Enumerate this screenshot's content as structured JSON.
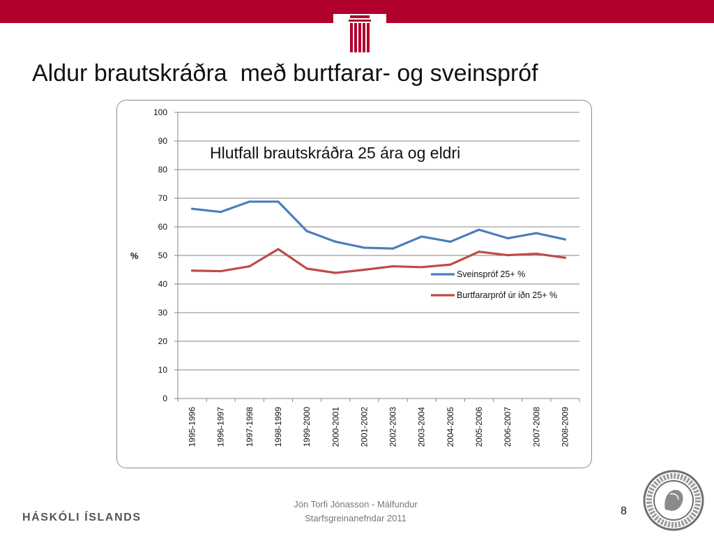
{
  "slide": {
    "title": "Aldur brautskráðra  með burtfarar- og sveinspróf"
  },
  "footer": {
    "brand": "HÁSKÓLI ÍSLANDS",
    "note_line1": "Jón Torfi Jónasson - Málfundur",
    "note_line2": "Starfsgreinanefndar 2011",
    "page_number": "8",
    "seal_icon": "university-seal-icon",
    "logo_icon": "pillar-logo-icon"
  },
  "colors": {
    "brand_red": "#b1002b"
  },
  "chart_data": {
    "type": "line",
    "title": "Hlutfall brautskráðra 25 ára og eldri",
    "ylabel": "%",
    "xlabel": "",
    "ylim": [
      0,
      100
    ],
    "yticks": [
      0,
      10,
      20,
      30,
      40,
      50,
      60,
      70,
      80,
      90,
      100
    ],
    "grid": true,
    "legend_position": "right",
    "categories": [
      "1995-1996",
      "1996-1997",
      "1997-1998",
      "1998-1999",
      "1999-2000",
      "2000-2001",
      "2001-2002",
      "2002-2003",
      "2003-2004",
      "2004-2005",
      "2005-2006",
      "2006-2007",
      "2007-2008",
      "2008-2009"
    ],
    "series": [
      {
        "name": "Sveinspróf 25+   %",
        "color": "#4a7ebb",
        "values": [
          66.3,
          65.2,
          68.8,
          68.8,
          58.5,
          54.8,
          52.7,
          52.4,
          56.6,
          54.8,
          59.0,
          56.0,
          57.8,
          55.6
        ]
      },
      {
        "name": "Burtfararpróf úr iðn 25+   %",
        "color": "#be4b48",
        "values": [
          44.7,
          44.5,
          46.2,
          52.2,
          45.4,
          43.9,
          45.0,
          46.2,
          45.9,
          46.8,
          51.3,
          50.1,
          50.6,
          49.2
        ]
      }
    ]
  }
}
